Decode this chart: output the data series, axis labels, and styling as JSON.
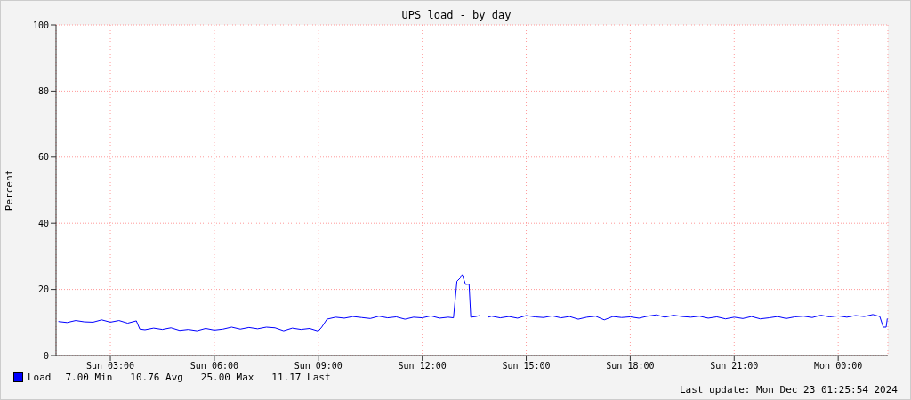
{
  "chart_data": {
    "type": "line",
    "title": "UPS load - by day",
    "ylabel": "Percent",
    "x": [
      "2024-12-22T01:30",
      "2024-12-22T01:45",
      "2024-12-22T02:00",
      "2024-12-22T02:15",
      "2024-12-22T02:30",
      "2024-12-22T02:45",
      "2024-12-22T03:00",
      "2024-12-22T03:15",
      "2024-12-22T03:30",
      "2024-12-22T03:45",
      "2024-12-22T03:51",
      "2024-12-22T04:00",
      "2024-12-22T04:15",
      "2024-12-22T04:30",
      "2024-12-22T04:45",
      "2024-12-22T05:00",
      "2024-12-22T05:15",
      "2024-12-22T05:30",
      "2024-12-22T05:45",
      "2024-12-22T06:00",
      "2024-12-22T06:15",
      "2024-12-22T06:30",
      "2024-12-22T06:45",
      "2024-12-22T07:00",
      "2024-12-22T07:15",
      "2024-12-22T07:30",
      "2024-12-22T07:45",
      "2024-12-22T08:00",
      "2024-12-22T08:15",
      "2024-12-22T08:30",
      "2024-12-22T08:45",
      "2024-12-22T09:00",
      "2024-12-22T09:06",
      "2024-12-22T09:15",
      "2024-12-22T09:30",
      "2024-12-22T09:45",
      "2024-12-22T10:00",
      "2024-12-22T10:15",
      "2024-12-22T10:30",
      "2024-12-22T10:45",
      "2024-12-22T11:00",
      "2024-12-22T11:15",
      "2024-12-22T11:30",
      "2024-12-22T11:45",
      "2024-12-22T12:00",
      "2024-12-22T12:15",
      "2024-12-22T12:30",
      "2024-12-22T12:45",
      "2024-12-22T12:54",
      "2024-12-22T13:00",
      "2024-12-22T13:06",
      "2024-12-22T13:09",
      "2024-12-22T13:15",
      "2024-12-22T13:21",
      "2024-12-22T13:24",
      "2024-12-22T13:33",
      "2024-12-22T13:39",
      "2024-12-22T13:42",
      "2024-12-22T13:54",
      "2024-12-22T14:00",
      "2024-12-22T14:15",
      "2024-12-22T14:30",
      "2024-12-22T14:45",
      "2024-12-22T15:00",
      "2024-12-22T15:15",
      "2024-12-22T15:30",
      "2024-12-22T15:45",
      "2024-12-22T16:00",
      "2024-12-22T16:15",
      "2024-12-22T16:30",
      "2024-12-22T16:45",
      "2024-12-22T17:00",
      "2024-12-22T17:15",
      "2024-12-22T17:30",
      "2024-12-22T17:45",
      "2024-12-22T18:00",
      "2024-12-22T18:15",
      "2024-12-22T18:30",
      "2024-12-22T18:45",
      "2024-12-22T19:00",
      "2024-12-22T19:15",
      "2024-12-22T19:30",
      "2024-12-22T19:45",
      "2024-12-22T20:00",
      "2024-12-22T20:15",
      "2024-12-22T20:30",
      "2024-12-22T20:45",
      "2024-12-22T21:00",
      "2024-12-22T21:15",
      "2024-12-22T21:30",
      "2024-12-22T21:45",
      "2024-12-22T22:00",
      "2024-12-22T22:15",
      "2024-12-22T22:30",
      "2024-12-22T22:45",
      "2024-12-22T23:00",
      "2024-12-22T23:15",
      "2024-12-22T23:30",
      "2024-12-22T23:45",
      "2024-12-23T00:00",
      "2024-12-23T00:15",
      "2024-12-23T00:30",
      "2024-12-23T00:45",
      "2024-12-23T01:00",
      "2024-12-23T01:12",
      "2024-12-23T01:18",
      "2024-12-23T01:23",
      "2024-12-23T01:25"
    ],
    "series": [
      {
        "name": "Load",
        "color": "#0000ff",
        "values": [
          10.3,
          10.0,
          10.6,
          10.2,
          10.1,
          10.8,
          10.1,
          10.6,
          9.8,
          10.5,
          8.0,
          7.8,
          8.3,
          7.9,
          8.4,
          7.6,
          7.9,
          7.5,
          8.2,
          7.7,
          8.0,
          8.6,
          8.0,
          8.5,
          8.1,
          8.6,
          8.4,
          7.5,
          8.3,
          7.9,
          8.2,
          7.4,
          8.6,
          11.0,
          11.6,
          11.3,
          11.8,
          11.5,
          11.2,
          11.9,
          11.4,
          11.7,
          11.0,
          11.6,
          11.4,
          12.0,
          11.3,
          11.6,
          11.4,
          22.5,
          23.5,
          24.5,
          21.5,
          21.6,
          11.6,
          11.8,
          12.1,
          null,
          11.6,
          11.9,
          11.4,
          11.8,
          11.3,
          12.1,
          11.7,
          11.5,
          12.0,
          11.4,
          11.8,
          11.0,
          11.6,
          11.9,
          10.8,
          11.8,
          11.5,
          11.7,
          11.3,
          11.9,
          12.3,
          11.6,
          12.2,
          11.8,
          11.6,
          11.9,
          11.3,
          11.7,
          11.1,
          11.6,
          11.2,
          11.8,
          11.1,
          11.4,
          11.8,
          11.2,
          11.7,
          11.9,
          11.5,
          12.2,
          11.7,
          12.0,
          11.6,
          12.1,
          11.8,
          12.4,
          11.8,
          8.6,
          8.6,
          11.2
        ]
      }
    ],
    "xlim": [
      "2024-12-22T01:26",
      "2024-12-23T01:26"
    ],
    "xticks": [
      {
        "value": "2024-12-22T03:00",
        "label": "Sun 03:00"
      },
      {
        "value": "2024-12-22T06:00",
        "label": "Sun 06:00"
      },
      {
        "value": "2024-12-22T09:00",
        "label": "Sun 09:00"
      },
      {
        "value": "2024-12-22T12:00",
        "label": "Sun 12:00"
      },
      {
        "value": "2024-12-22T15:00",
        "label": "Sun 15:00"
      },
      {
        "value": "2024-12-22T18:00",
        "label": "Sun 18:00"
      },
      {
        "value": "2024-12-22T21:00",
        "label": "Sun 21:00"
      },
      {
        "value": "2024-12-23T00:00",
        "label": "Mon 00:00"
      }
    ],
    "ylim": [
      0,
      100
    ],
    "yticks": [
      0,
      20,
      40,
      60,
      80,
      100
    ],
    "grid": true,
    "legend": "bottom left",
    "marker": "none",
    "line_style": "solid",
    "annotations": [
      "7.00 Min   10.76 Avg   25.00 Max   11.17 Last",
      "Last update: Mon Dec 23 01:25:54 2024"
    ]
  }
}
